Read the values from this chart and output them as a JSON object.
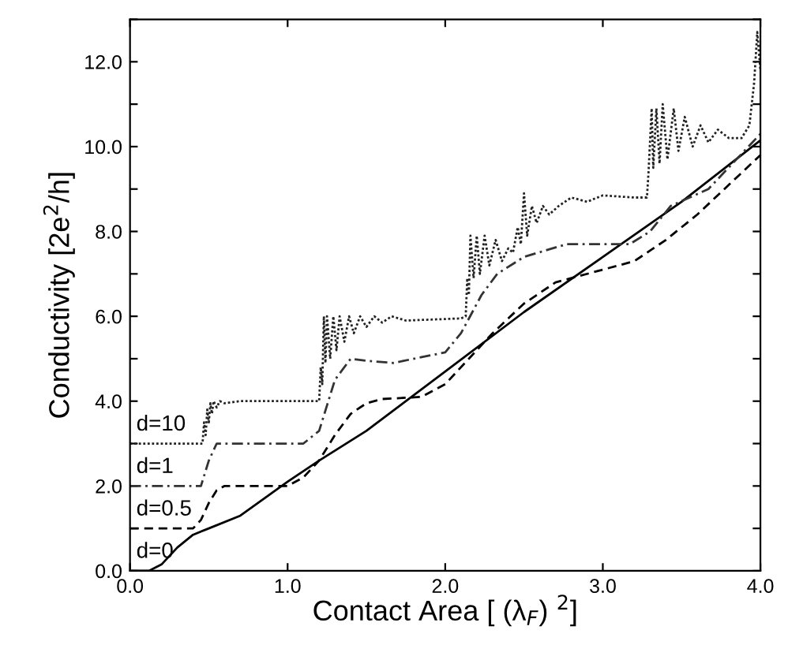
{
  "chart_data": {
    "type": "line",
    "xlabel": "Contact Area [ (λ$_{F}$) $^{2}$]",
    "ylabel": "Conductivity [2e$^{2}$/h]",
    "xlim": [
      0,
      4
    ],
    "ylim": [
      0,
      13
    ],
    "xticks": [
      {
        "value": 0,
        "label": "0.0"
      },
      {
        "value": 1,
        "label": "1.0"
      },
      {
        "value": 2,
        "label": "2.0"
      },
      {
        "value": 3,
        "label": "3.0"
      },
      {
        "value": 4,
        "label": "4.0"
      }
    ],
    "yticks": [
      {
        "value": 0,
        "label": "0.0"
      },
      {
        "value": 1,
        "label": null
      },
      {
        "value": 2,
        "label": "2.0"
      },
      {
        "value": 3,
        "label": null
      },
      {
        "value": 4,
        "label": "4.0"
      },
      {
        "value": 5,
        "label": null
      },
      {
        "value": 6,
        "label": "6.0"
      },
      {
        "value": 7,
        "label": null
      },
      {
        "value": 8,
        "label": "8.0"
      },
      {
        "value": 9,
        "label": null
      },
      {
        "value": 10,
        "label": "10.0"
      },
      {
        "value": 11,
        "label": null
      },
      {
        "value": 12,
        "label": "12.0"
      },
      {
        "value": 13,
        "label": null
      }
    ],
    "series": [
      {
        "name": "d=0",
        "color": "#000000",
        "line_style": "solid",
        "x": [
          0,
          0.12,
          0.2,
          0.3,
          0.4,
          0.5,
          0.7,
          0.85,
          1.0,
          1.2,
          1.5,
          2.0,
          2.5,
          3.0,
          3.5,
          4.0
        ],
        "values": [
          0,
          0,
          0.15,
          0.55,
          0.85,
          1.0,
          1.3,
          1.7,
          2.1,
          2.6,
          3.3,
          4.7,
          6.1,
          7.4,
          8.7,
          10.15
        ]
      },
      {
        "name": "d=0.5",
        "color": "#000000",
        "line_style": "dashed",
        "x": [
          0,
          0.4,
          0.45,
          0.5,
          0.55,
          0.6,
          1.0,
          1.1,
          1.2,
          1.3,
          1.4,
          1.5,
          1.6,
          1.85,
          2.0,
          2.15,
          2.3,
          2.5,
          2.7,
          3.0,
          3.2,
          3.4,
          3.6,
          4.0
        ],
        "values": [
          1,
          1.0,
          1.2,
          1.6,
          1.9,
          2.0,
          2.0,
          2.2,
          2.6,
          3.2,
          3.7,
          3.95,
          4.05,
          4.1,
          4.4,
          5.0,
          5.6,
          6.3,
          6.8,
          7.1,
          7.3,
          7.8,
          8.4,
          9.8
        ]
      },
      {
        "name": "d=1",
        "color": "#333333",
        "line_style": "dashdot",
        "x": [
          0,
          0.45,
          0.5,
          0.55,
          0.6,
          1.1,
          1.2,
          1.3,
          1.4,
          1.5,
          1.67,
          2.0,
          2.1,
          2.23,
          2.33,
          2.5,
          2.77,
          3.17,
          3.3,
          3.43,
          3.67,
          4.0
        ],
        "values": [
          2,
          2,
          2.6,
          3.0,
          3.0,
          3.0,
          3.3,
          4.5,
          5.0,
          4.95,
          4.9,
          5.15,
          5.6,
          6.5,
          7.0,
          7.4,
          7.7,
          7.7,
          8.0,
          8.6,
          9.0,
          10.3
        ]
      },
      {
        "name": "d=10",
        "color": "#222222",
        "line_style": "dotted",
        "x": [
          0,
          0.46,
          0.47,
          0.48,
          0.49,
          0.5,
          0.51,
          0.52,
          0.53,
          0.55,
          0.57,
          0.6,
          0.7,
          1.2,
          1.21,
          1.22,
          1.23,
          1.24,
          1.25,
          1.27,
          1.29,
          1.31,
          1.33,
          1.36,
          1.39,
          1.42,
          1.46,
          1.5,
          1.55,
          1.6,
          1.66,
          1.75,
          2.1,
          2.13,
          2.14,
          2.15,
          2.16,
          2.18,
          2.2,
          2.22,
          2.25,
          2.28,
          2.32,
          2.36,
          2.4,
          2.43,
          2.46,
          2.48,
          2.5,
          2.52,
          2.55,
          2.58,
          2.62,
          2.66,
          2.72,
          2.8,
          2.9,
          3.0,
          3.2,
          3.28,
          3.29,
          3.31,
          3.32,
          3.34,
          3.36,
          3.38,
          3.41,
          3.45,
          3.48,
          3.52,
          3.57,
          3.62,
          3.67,
          3.73,
          3.8,
          3.88,
          3.93,
          3.96,
          3.98,
          4.0
        ],
        "values": [
          3,
          3,
          3.5,
          3.2,
          3.8,
          3.5,
          3.95,
          3.7,
          4.0,
          3.85,
          4.0,
          3.95,
          4.0,
          4.0,
          4.8,
          4.4,
          6.0,
          4.9,
          6.0,
          5.0,
          6.0,
          5.2,
          6.0,
          5.4,
          6.0,
          5.6,
          6.0,
          5.75,
          6.0,
          5.85,
          6.0,
          5.9,
          5.95,
          6.0,
          6.9,
          6.5,
          7.9,
          6.9,
          7.9,
          7.0,
          7.9,
          7.2,
          7.8,
          7.3,
          7.6,
          7.5,
          8.1,
          7.7,
          8.9,
          7.9,
          8.6,
          8.2,
          8.6,
          8.4,
          8.6,
          8.8,
          8.7,
          8.85,
          8.8,
          8.8,
          9.4,
          10.9,
          9.5,
          10.9,
          9.6,
          11.0,
          9.7,
          10.9,
          9.9,
          10.7,
          10.0,
          10.5,
          10.1,
          10.4,
          10.2,
          10.2,
          10.5,
          11.5,
          12.7,
          11.8
        ]
      }
    ]
  }
}
